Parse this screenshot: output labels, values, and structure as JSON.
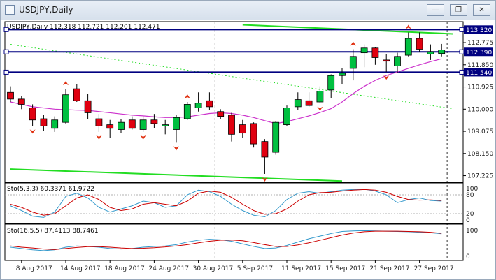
{
  "window": {
    "title": "USDJPY,Daily",
    "minimize_icon": "minimize-icon",
    "restore_icon": "restore-icon",
    "close_icon": "close-icon"
  },
  "colors": {
    "background": "#ffffff",
    "bull": "#00c040",
    "bear": "#e00010",
    "trend_line": "#22dd22",
    "level_line": "#000080",
    "ma_line": "#cc33cc",
    "stoch_main": "#3399cc",
    "stoch_signal": "#cc0000"
  },
  "chart_data": {
    "type": "candlestick",
    "symbol_info": "USDJPY,Daily  112.318 112.721 112.201 112.471",
    "dates": [
      "7 Aug",
      "8 Aug",
      "9 Aug",
      "10 Aug",
      "11 Aug",
      "14 Aug",
      "15 Aug",
      "16 Aug",
      "17 Aug",
      "18 Aug",
      "21 Aug",
      "22 Aug",
      "23 Aug",
      "24 Aug",
      "25 Aug",
      "28 Aug",
      "29 Aug",
      "30 Aug",
      "31 Aug",
      "1 Sep",
      "4 Sep",
      "5 Sep",
      "6 Sep",
      "7 Sep",
      "8 Sep",
      "11 Sep",
      "12 Sep",
      "13 Sep",
      "14 Sep",
      "15 Sep",
      "18 Sep",
      "19 Sep",
      "20 Sep",
      "21 Sep",
      "22 Sep",
      "25 Sep",
      "26 Sep",
      "27 Sep",
      "28 Sep",
      "29 Sep"
    ],
    "ohlc": [
      [
        110.7,
        110.95,
        110.3,
        110.42
      ],
      [
        110.42,
        110.55,
        110.0,
        110.2
      ],
      [
        110.05,
        110.2,
        109.3,
        109.55
      ],
      [
        109.6,
        109.75,
        109.1,
        109.3
      ],
      [
        109.2,
        109.7,
        109.05,
        109.55
      ],
      [
        109.45,
        110.85,
        109.4,
        110.6
      ],
      [
        110.85,
        111.05,
        110.3,
        110.35
      ],
      [
        110.35,
        110.65,
        109.6,
        109.85
      ],
      [
        109.6,
        109.8,
        109.05,
        109.3
      ],
      [
        109.35,
        109.55,
        108.8,
        109.2
      ],
      [
        109.15,
        109.6,
        109.0,
        109.45
      ],
      [
        109.55,
        109.7,
        109.15,
        109.2
      ],
      [
        109.15,
        109.7,
        109.05,
        109.55
      ],
      [
        109.55,
        109.8,
        109.2,
        109.4
      ],
      [
        109.3,
        109.55,
        108.95,
        109.35
      ],
      [
        109.15,
        109.75,
        108.6,
        109.65
      ],
      [
        109.6,
        110.3,
        109.55,
        110.2
      ],
      [
        110.05,
        110.7,
        109.9,
        110.25
      ],
      [
        110.35,
        110.7,
        109.95,
        110.1
      ],
      [
        109.9,
        110.0,
        109.6,
        109.7
      ],
      [
        109.75,
        109.85,
        108.65,
        108.95
      ],
      [
        109.35,
        109.55,
        108.8,
        109.0
      ],
      [
        109.4,
        109.45,
        108.4,
        108.55
      ],
      [
        108.65,
        108.75,
        107.3,
        108.0
      ],
      [
        108.2,
        109.5,
        108.1,
        109.45
      ],
      [
        109.35,
        110.15,
        109.3,
        110.05
      ],
      [
        110.1,
        110.7,
        109.95,
        110.4
      ],
      [
        110.35,
        110.7,
        110.1,
        110.15
      ],
      [
        110.3,
        110.95,
        110.25,
        110.75
      ],
      [
        110.8,
        111.45,
        110.45,
        111.4
      ],
      [
        111.4,
        111.7,
        111.05,
        111.5
      ],
      [
        111.7,
        112.5,
        111.2,
        112.2
      ],
      [
        112.35,
        112.7,
        111.75,
        112.55
      ],
      [
        112.55,
        112.6,
        111.85,
        112.15
      ],
      [
        112.05,
        112.3,
        111.55,
        112.0
      ],
      [
        111.8,
        112.35,
        111.5,
        112.2
      ],
      [
        112.25,
        113.2,
        112.2,
        112.95
      ],
      [
        112.95,
        113.2,
        112.4,
        112.5
      ],
      [
        112.3,
        112.7,
        112.05,
        112.4
      ],
      [
        112.32,
        112.72,
        112.2,
        112.47
      ]
    ],
    "moving_average": [
      110.3,
      110.2,
      110.1,
      110.05,
      110.0,
      109.98,
      109.96,
      109.95,
      109.9,
      109.85,
      109.8,
      109.75,
      109.72,
      109.68,
      109.65,
      109.65,
      109.68,
      109.75,
      109.82,
      109.85,
      109.82,
      109.75,
      109.65,
      109.52,
      109.4,
      109.48,
      109.6,
      109.72,
      109.86,
      110.02,
      110.3,
      110.65,
      110.95,
      111.2,
      111.4,
      111.55,
      111.7,
      111.85,
      111.98,
      112.1
    ],
    "levels": [
      113.32,
      112.39,
      111.54
    ],
    "level_labels": [
      "113.320",
      "112.390",
      "111.540"
    ],
    "trend_lines": [
      {
        "name": "upper-channel",
        "from": [
          0,
          112.7
        ],
        "to": [
          40,
          110.02
        ],
        "style": "dotted"
      },
      {
        "name": "lower-channel",
        "from": [
          0,
          107.5
        ],
        "to": [
          30,
          107.0
        ],
        "style": "solid"
      },
      {
        "name": "top-resistance",
        "from": [
          21,
          113.52
        ],
        "to": [
          40,
          113.14
        ],
        "style": "solid"
      }
    ],
    "fractals_up": [
      5,
      16,
      31,
      36
    ],
    "fractals_down": [
      2,
      8,
      12,
      15,
      23,
      28,
      34
    ],
    "y_ticks": [
      "112.775",
      "111.850",
      "110.925",
      "110.000",
      "109.075",
      "108.150",
      "107.225"
    ],
    "y_range": [
      106.95,
      113.65
    ],
    "x_labels": [
      "8 Aug 2017",
      "14 Aug 2017",
      "18 Aug 2017",
      "24 Aug 2017",
      "30 Aug 2017",
      "5 Sep 2017",
      "11 Sep 2017",
      "15 Sep 2017",
      "21 Sep 2017",
      "27 Sep 2017"
    ],
    "x_label_index": [
      1,
      5,
      9,
      13,
      17,
      21,
      25,
      29,
      33,
      37
    ],
    "period_separator_index": [
      18,
      39
    ],
    "stoch1": {
      "label": "Sto(5,3,3) 60.3371 61.9722",
      "levels_labels": [
        "100",
        "80",
        "20",
        "0"
      ],
      "main": [
        45,
        30,
        12,
        8,
        25,
        75,
        85,
        70,
        40,
        25,
        35,
        45,
        60,
        55,
        40,
        45,
        80,
        95,
        90,
        75,
        50,
        30,
        15,
        10,
        30,
        65,
        85,
        90,
        85,
        90,
        95,
        97,
        98,
        92,
        80,
        55,
        65,
        70,
        62,
        60
      ],
      "signal": [
        50,
        40,
        25,
        15,
        20,
        45,
        70,
        80,
        65,
        40,
        30,
        35,
        50,
        55,
        50,
        45,
        60,
        85,
        92,
        88,
        72,
        50,
        30,
        18,
        20,
        35,
        60,
        80,
        87,
        88,
        92,
        95,
        97,
        95,
        88,
        75,
        65,
        63,
        64,
        62
      ]
    },
    "stoch2": {
      "label": "Sto(16,5,5) 87.4113 88.7461",
      "levels_labels": [
        "100",
        "0"
      ],
      "main": [
        35,
        30,
        25,
        22,
        25,
        35,
        40,
        38,
        35,
        30,
        28,
        30,
        35,
        38,
        40,
        45,
        55,
        62,
        66,
        64,
        58,
        48,
        38,
        30,
        32,
        42,
        55,
        68,
        78,
        88,
        96,
        98,
        99,
        98,
        97,
        96,
        95,
        93,
        91,
        87
      ],
      "signal": [
        40,
        35,
        32,
        28,
        26,
        30,
        34,
        37,
        37,
        35,
        32,
        30,
        31,
        33,
        36,
        40,
        45,
        52,
        58,
        62,
        63,
        60,
        53,
        45,
        38,
        38,
        44,
        52,
        62,
        72,
        82,
        90,
        95,
        97,
        97,
        97,
        96,
        95,
        93,
        89
      ]
    }
  }
}
